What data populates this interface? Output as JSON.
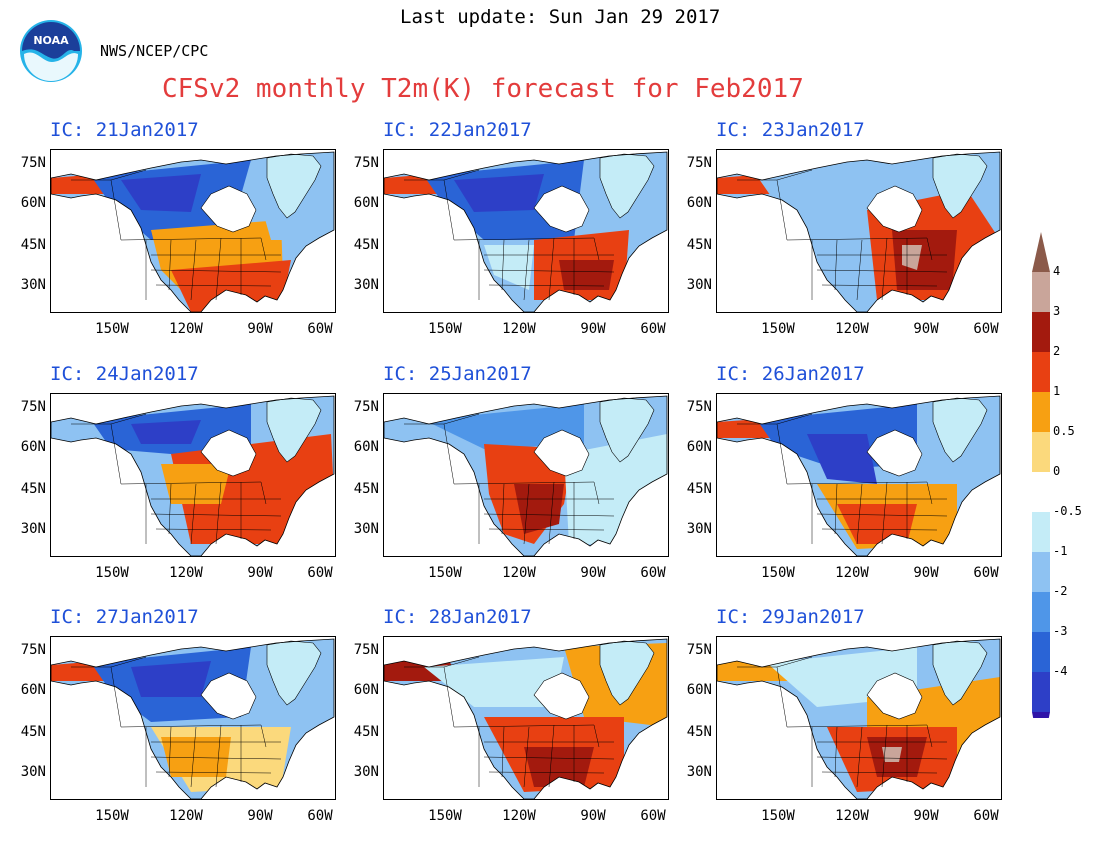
{
  "header": {
    "last_update": "Last update: Sun Jan 29 2017",
    "agency": "NWS/NCEP/CPC",
    "title": "CFSv2 monthly T2m(K) forecast for Feb2017",
    "logo_text": "NOAA"
  },
  "axes": {
    "lat_labels": [
      "75N",
      "60N",
      "45N",
      "30N"
    ],
    "lon_labels": [
      "150W",
      "120W",
      "90W",
      "60W"
    ]
  },
  "colorbar": {
    "labels": [
      "4",
      "3",
      "2",
      "1",
      "0.5",
      "0",
      "-0.5",
      "-1",
      "-2",
      "-3",
      "-4"
    ],
    "colors": [
      "#8b5a4a",
      "#c9a59a",
      "#a31a0e",
      "#e84012",
      "#f7a012",
      "#fbd97c",
      "#ffffff",
      "#c4ecf7",
      "#8ec2f2",
      "#4f96e8",
      "#2a64d6",
      "#2d3fc7",
      "#2f14a8"
    ]
  },
  "panels": [
    {
      "title": "IC: 21Jan2017"
    },
    {
      "title": "IC: 22Jan2017"
    },
    {
      "title": "IC: 23Jan2017"
    },
    {
      "title": "IC: 24Jan2017"
    },
    {
      "title": "IC: 25Jan2017"
    },
    {
      "title": "IC: 26Jan2017"
    },
    {
      "title": "IC: 27Jan2017"
    },
    {
      "title": "IC: 28Jan2017"
    },
    {
      "title": "IC: 29Jan2017"
    }
  ]
}
